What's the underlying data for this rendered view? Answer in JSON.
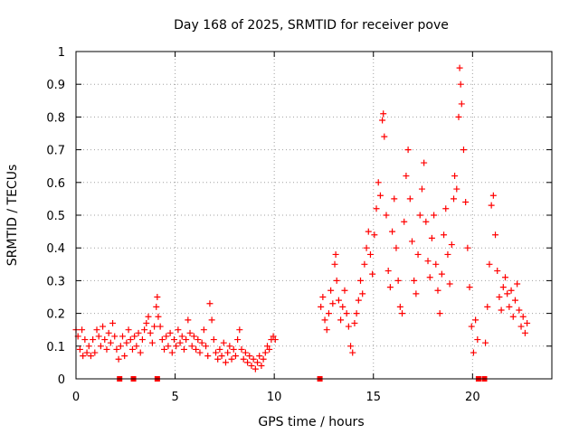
{
  "chart_data": {
    "type": "scatter",
    "title": "Day 168 of 2025, SRMTID for receiver pove",
    "xlabel": "GPS time / hours",
    "ylabel": "SRMTID / TECUs",
    "xlim": [
      0,
      24
    ],
    "ylim": [
      0,
      1
    ],
    "grid": true,
    "marker": "plus",
    "color": "#ff0000",
    "x_ticks": [
      {
        "value": 0,
        "label": "0"
      },
      {
        "value": 5,
        "label": "5"
      },
      {
        "value": 10,
        "label": "10"
      },
      {
        "value": 15,
        "label": "15"
      },
      {
        "value": 20,
        "label": "20"
      }
    ],
    "y_ticks": [
      {
        "value": 0,
        "label": "0"
      },
      {
        "value": 0.1,
        "label": "0.1"
      },
      {
        "value": 0.2,
        "label": "0.2"
      },
      {
        "value": 0.3,
        "label": "0.3"
      },
      {
        "value": 0.4,
        "label": "0.4"
      },
      {
        "value": 0.5,
        "label": "0.5"
      },
      {
        "value": 0.6,
        "label": "0.6"
      },
      {
        "value": 0.7,
        "label": "0.7"
      },
      {
        "value": 0.8,
        "label": "0.8"
      },
      {
        "value": 0.9,
        "label": "0.9"
      },
      {
        "value": 1,
        "label": "1"
      }
    ],
    "series": [
      {
        "name": "SRMTID",
        "points": [
          [
            0.0,
            0.15
          ],
          [
            0.1,
            0.13
          ],
          [
            0.2,
            0.09
          ],
          [
            0.3,
            0.15
          ],
          [
            0.35,
            0.07
          ],
          [
            0.45,
            0.12
          ],
          [
            0.55,
            0.08
          ],
          [
            0.65,
            0.1
          ],
          [
            0.75,
            0.07
          ],
          [
            0.85,
            0.12
          ],
          [
            0.95,
            0.08
          ],
          [
            1.05,
            0.15
          ],
          [
            1.15,
            0.13
          ],
          [
            1.25,
            0.1
          ],
          [
            1.35,
            0.16
          ],
          [
            1.45,
            0.12
          ],
          [
            1.55,
            0.09
          ],
          [
            1.65,
            0.14
          ],
          [
            1.75,
            0.11
          ],
          [
            1.85,
            0.17
          ],
          [
            1.95,
            0.13
          ],
          [
            2.05,
            0.09
          ],
          [
            2.15,
            0.06
          ],
          [
            2.25,
            0.1
          ],
          [
            2.35,
            0.13
          ],
          [
            2.45,
            0.07
          ],
          [
            2.55,
            0.11
          ],
          [
            2.65,
            0.15
          ],
          [
            2.75,
            0.12
          ],
          [
            2.85,
            0.09
          ],
          [
            2.95,
            0.13
          ],
          [
            3.05,
            0.1
          ],
          [
            3.15,
            0.14
          ],
          [
            3.25,
            0.08
          ],
          [
            3.35,
            0.12
          ],
          [
            3.45,
            0.15
          ],
          [
            3.55,
            0.17
          ],
          [
            3.65,
            0.19
          ],
          [
            3.75,
            0.14
          ],
          [
            3.85,
            0.11
          ],
          [
            3.95,
            0.16
          ],
          [
            4.05,
            0.22
          ],
          [
            4.1,
            0.25
          ],
          [
            4.15,
            0.19
          ],
          [
            4.25,
            0.16
          ],
          [
            4.35,
            0.12
          ],
          [
            4.45,
            0.09
          ],
          [
            4.55,
            0.13
          ],
          [
            4.65,
            0.1
          ],
          [
            4.75,
            0.14
          ],
          [
            4.85,
            0.08
          ],
          [
            4.95,
            0.12
          ],
          [
            5.05,
            0.1
          ],
          [
            5.15,
            0.15
          ],
          [
            5.25,
            0.11
          ],
          [
            5.35,
            0.13
          ],
          [
            5.45,
            0.09
          ],
          [
            5.55,
            0.12
          ],
          [
            5.65,
            0.18
          ],
          [
            5.75,
            0.14
          ],
          [
            5.85,
            0.1
          ],
          [
            5.95,
            0.13
          ],
          [
            6.05,
            0.09
          ],
          [
            6.15,
            0.12
          ],
          [
            6.25,
            0.08
          ],
          [
            6.35,
            0.11
          ],
          [
            6.45,
            0.15
          ],
          [
            6.55,
            0.1
          ],
          [
            6.65,
            0.07
          ],
          [
            6.75,
            0.23
          ],
          [
            6.85,
            0.18
          ],
          [
            6.95,
            0.12
          ],
          [
            7.05,
            0.08
          ],
          [
            7.15,
            0.06
          ],
          [
            7.25,
            0.09
          ],
          [
            7.35,
            0.07
          ],
          [
            7.45,
            0.11
          ],
          [
            7.55,
            0.05
          ],
          [
            7.65,
            0.08
          ],
          [
            7.75,
            0.1
          ],
          [
            7.85,
            0.06
          ],
          [
            7.95,
            0.09
          ],
          [
            8.05,
            0.07
          ],
          [
            8.15,
            0.12
          ],
          [
            8.25,
            0.15
          ],
          [
            8.35,
            0.09
          ],
          [
            8.45,
            0.06
          ],
          [
            8.55,
            0.08
          ],
          [
            8.65,
            0.05
          ],
          [
            8.75,
            0.07
          ],
          [
            8.85,
            0.04
          ],
          [
            8.95,
            0.06
          ],
          [
            9.05,
            0.03
          ],
          [
            9.15,
            0.05
          ],
          [
            9.25,
            0.07
          ],
          [
            9.35,
            0.04
          ],
          [
            9.45,
            0.06
          ],
          [
            9.55,
            0.08
          ],
          [
            9.65,
            0.1
          ],
          [
            9.75,
            0.09
          ],
          [
            9.85,
            0.12
          ],
          [
            9.95,
            0.13
          ],
          [
            10.05,
            0.12
          ],
          [
            12.35,
            0.22
          ],
          [
            12.45,
            0.25
          ],
          [
            12.55,
            0.18
          ],
          [
            12.65,
            0.15
          ],
          [
            12.75,
            0.2
          ],
          [
            12.85,
            0.27
          ],
          [
            12.95,
            0.23
          ],
          [
            13.05,
            0.35
          ],
          [
            13.1,
            0.38
          ],
          [
            13.15,
            0.3
          ],
          [
            13.25,
            0.24
          ],
          [
            13.35,
            0.18
          ],
          [
            13.45,
            0.22
          ],
          [
            13.55,
            0.27
          ],
          [
            13.65,
            0.2
          ],
          [
            13.75,
            0.16
          ],
          [
            13.85,
            0.1
          ],
          [
            13.95,
            0.08
          ],
          [
            14.05,
            0.17
          ],
          [
            14.15,
            0.2
          ],
          [
            14.25,
            0.24
          ],
          [
            14.35,
            0.3
          ],
          [
            14.45,
            0.26
          ],
          [
            14.55,
            0.35
          ],
          [
            14.65,
            0.4
          ],
          [
            14.75,
            0.45
          ],
          [
            14.85,
            0.38
          ],
          [
            14.95,
            0.32
          ],
          [
            15.05,
            0.44
          ],
          [
            15.15,
            0.52
          ],
          [
            15.25,
            0.6
          ],
          [
            15.35,
            0.56
          ],
          [
            15.45,
            0.79
          ],
          [
            15.5,
            0.81
          ],
          [
            15.55,
            0.74
          ],
          [
            15.65,
            0.5
          ],
          [
            15.75,
            0.33
          ],
          [
            15.85,
            0.28
          ],
          [
            15.95,
            0.45
          ],
          [
            16.05,
            0.55
          ],
          [
            16.15,
            0.4
          ],
          [
            16.25,
            0.3
          ],
          [
            16.35,
            0.22
          ],
          [
            16.45,
            0.2
          ],
          [
            16.55,
            0.48
          ],
          [
            16.65,
            0.62
          ],
          [
            16.75,
            0.7
          ],
          [
            16.85,
            0.55
          ],
          [
            16.95,
            0.42
          ],
          [
            17.05,
            0.3
          ],
          [
            17.15,
            0.26
          ],
          [
            17.25,
            0.38
          ],
          [
            17.35,
            0.5
          ],
          [
            17.45,
            0.58
          ],
          [
            17.55,
            0.66
          ],
          [
            17.65,
            0.48
          ],
          [
            17.75,
            0.36
          ],
          [
            17.85,
            0.31
          ],
          [
            17.95,
            0.43
          ],
          [
            18.05,
            0.5
          ],
          [
            18.15,
            0.35
          ],
          [
            18.25,
            0.27
          ],
          [
            18.35,
            0.2
          ],
          [
            18.45,
            0.32
          ],
          [
            18.55,
            0.44
          ],
          [
            18.65,
            0.52
          ],
          [
            18.75,
            0.38
          ],
          [
            18.85,
            0.29
          ],
          [
            18.95,
            0.41
          ],
          [
            19.05,
            0.55
          ],
          [
            19.1,
            0.62
          ],
          [
            19.2,
            0.58
          ],
          [
            19.3,
            0.8
          ],
          [
            19.35,
            0.95
          ],
          [
            19.4,
            0.9
          ],
          [
            19.45,
            0.84
          ],
          [
            19.55,
            0.7
          ],
          [
            19.65,
            0.54
          ],
          [
            19.75,
            0.4
          ],
          [
            19.85,
            0.28
          ],
          [
            19.95,
            0.16
          ],
          [
            20.05,
            0.08
          ],
          [
            20.15,
            0.18
          ],
          [
            20.25,
            0.12
          ],
          [
            20.65,
            0.11
          ],
          [
            20.75,
            0.22
          ],
          [
            20.85,
            0.35
          ],
          [
            20.95,
            0.53
          ],
          [
            21.05,
            0.56
          ],
          [
            21.15,
            0.44
          ],
          [
            21.25,
            0.33
          ],
          [
            21.35,
            0.25
          ],
          [
            21.45,
            0.21
          ],
          [
            21.55,
            0.28
          ],
          [
            21.65,
            0.31
          ],
          [
            21.75,
            0.26
          ],
          [
            21.85,
            0.22
          ],
          [
            21.95,
            0.27
          ],
          [
            22.05,
            0.19
          ],
          [
            22.15,
            0.24
          ],
          [
            22.25,
            0.29
          ],
          [
            22.35,
            0.21
          ],
          [
            22.45,
            0.16
          ],
          [
            22.55,
            0.19
          ],
          [
            22.65,
            0.14
          ],
          [
            22.75,
            0.17
          ]
        ]
      }
    ],
    "gap_markers": [
      2.2,
      2.9,
      4.1,
      12.3,
      20.3,
      20.6
    ]
  }
}
